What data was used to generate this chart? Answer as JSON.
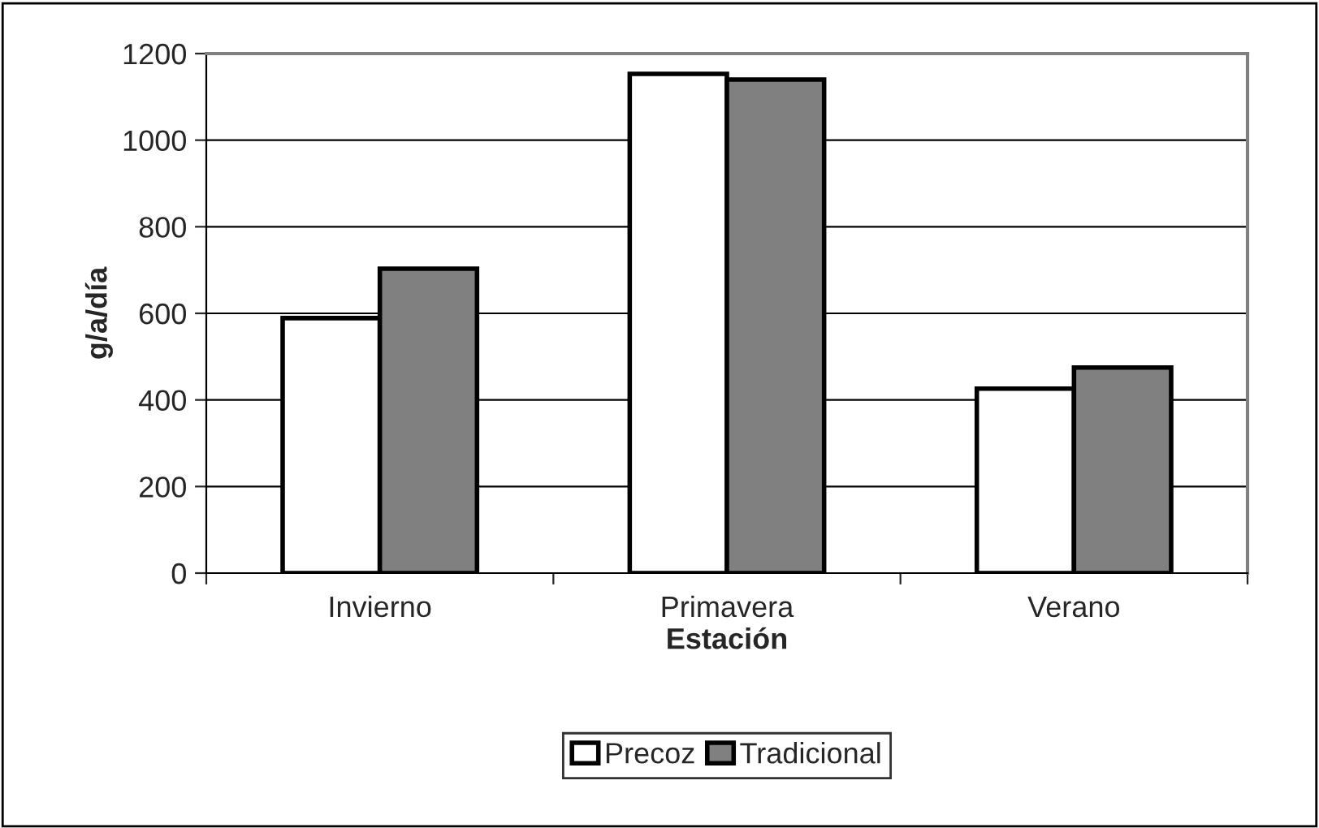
{
  "chart_data": {
    "type": "bar",
    "xlabel": "Estación",
    "ylabel": "g/a/día",
    "categories": [
      "Invierno",
      "Primavera",
      "Verano"
    ],
    "series": [
      {
        "name": "Precoz",
        "color": "#ffffff",
        "values": [
          589,
          1153,
          426
        ]
      },
      {
        "name": "Tradicional",
        "color": "#808080",
        "values": [
          703,
          1140,
          475
        ]
      }
    ],
    "ylim": [
      0,
      1200
    ],
    "yticks": [
      0,
      200,
      400,
      600,
      800,
      1000,
      1200
    ],
    "grid": "y",
    "legend": "bottom"
  }
}
